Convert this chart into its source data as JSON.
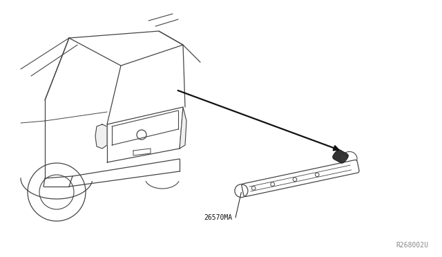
{
  "bg_color": "#ffffff",
  "line_color": "#444444",
  "dark_color": "#111111",
  "label_26570MA": "26570MA",
  "label_R268002U": "R268002U",
  "fig_width": 6.4,
  "fig_height": 3.72,
  "dpi": 100
}
